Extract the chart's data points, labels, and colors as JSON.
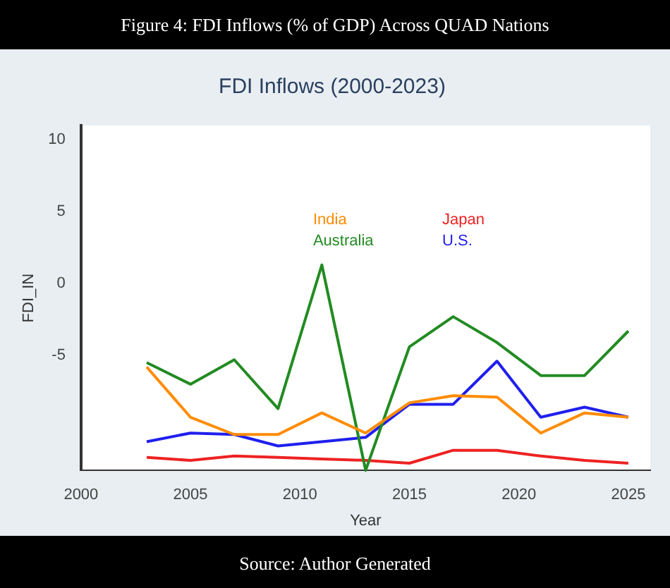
{
  "chart_data": {
    "type": "line",
    "title": "FDI Inflows (2000-2023)",
    "xlabel": "Year",
    "ylabel": "FDI_IN",
    "annotations": [
      "Figure 4: FDI Inflows (% of GDP) Across QUAD Nations",
      "Source: Author Generated"
    ],
    "x": [
      2003,
      2005,
      2007,
      2009,
      2011,
      2013,
      2015,
      2017,
      2019,
      2021,
      2023,
      2025
    ],
    "series": [
      {
        "name": "India",
        "color": "#ff8c00",
        "values": [
          -5.8,
          -9.3,
          -10.5,
          -10.5,
          -9.0,
          -10.4,
          -8.3,
          -7.8,
          -7.9,
          -10.4,
          -9.0,
          -9.3
        ]
      },
      {
        "name": "Australia",
        "color": "#228b22",
        "values": [
          -5.5,
          -7.0,
          -5.3,
          -8.7,
          1.3,
          -13,
          -4.4,
          -2.3,
          -4.1,
          -6.4,
          -6.4,
          -3.3
        ]
      },
      {
        "name": "Japan",
        "color": "#ee2222",
        "values": [
          -12.1,
          -12.3,
          -12.0,
          -12.1,
          -12.2,
          -12.3,
          -12.5,
          -11.6,
          -11.6,
          -12.0,
          -12.3,
          -12.5
        ]
      },
      {
        "name": "U.S.",
        "color": "#1f1fee",
        "values": [
          -11.0,
          -10.4,
          -10.5,
          -11.3,
          -11.0,
          -10.7,
          -8.4,
          -8.4,
          -5.4,
          -9.3,
          -8.6,
          -9.3
        ]
      }
    ],
    "xlim": [
      2000,
      2026
    ],
    "xticks": [
      2000,
      2005,
      2010,
      2015,
      2020,
      2025
    ],
    "ylim": [
      -13,
      11
    ],
    "yticks": [
      -5,
      0,
      5,
      10
    ],
    "grid": false,
    "legend": false,
    "marker": "none",
    "line_style": "solid"
  }
}
